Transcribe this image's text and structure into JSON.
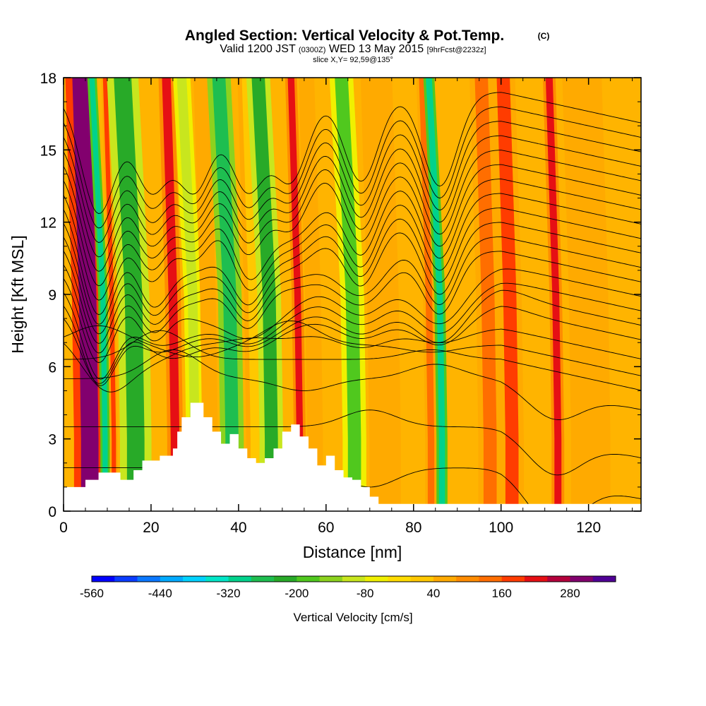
{
  "chart_data": {
    "type": "heatmap",
    "title_main": "Angled Section: Vertical Velocity & Pot.Temp.",
    "title_flag": "(C)",
    "subtitle_a": "Valid 1200 JST",
    "subtitle_b": "(0300Z)",
    "subtitle_c": "WED 13 May 2015",
    "subtitle_d": "[9hrFcst@2232z]",
    "slice_label": "slice X,Y= 92,59@135°",
    "xlabel": "Distance [nm]",
    "ylabel": "Height [Kft MSL]",
    "xlim": [
      0,
      132
    ],
    "ylim": [
      0,
      18
    ],
    "x_ticks": [
      "0",
      "20",
      "40",
      "60",
      "80",
      "100",
      "120"
    ],
    "x_tick_values": [
      0,
      20,
      40,
      60,
      80,
      100,
      120
    ],
    "y_ticks": [
      "0",
      "3",
      "6",
      "9",
      "12",
      "15",
      "18"
    ],
    "y_tick_values": [
      0,
      3,
      6,
      9,
      12,
      15,
      18
    ],
    "colorbar": {
      "label": "Vertical Velocity [cm/s]",
      "tick_labels": [
        "-560",
        "-440",
        "-320",
        "-200",
        "-80",
        "40",
        "160",
        "280"
      ],
      "levels": [
        -560,
        -520,
        -480,
        -440,
        -400,
        -360,
        -320,
        -280,
        -240,
        -200,
        -160,
        -120,
        -80,
        -40,
        0,
        40,
        80,
        120,
        160,
        200,
        240,
        280,
        320
      ],
      "colors": [
        "#0000ff",
        "#0a3cff",
        "#0a78ff",
        "#00aaff",
        "#00d2ff",
        "#00e6c8",
        "#00d28c",
        "#1ebe50",
        "#28aa28",
        "#50c81e",
        "#8cd21e",
        "#c8e61e",
        "#f0f000",
        "#ffdc00",
        "#ffc800",
        "#ffaa00",
        "#ff8c00",
        "#ff6e00",
        "#ff3c00",
        "#e60f14",
        "#b4003c",
        "#82006e",
        "#500096"
      ]
    },
    "vertical_velocity_bands": [
      {
        "x": 5.5,
        "w": 4.0,
        "v": 300
      },
      {
        "x": 9.0,
        "w": 1.2,
        "v": -320
      },
      {
        "x": 11.0,
        "w": 1.0,
        "v": 160
      },
      {
        "x": 16.0,
        "w": 4.0,
        "v": -240
      },
      {
        "x": 25.0,
        "w": 2.0,
        "v": 200
      },
      {
        "x": 29.5,
        "w": 2.2,
        "v": -120
      },
      {
        "x": 33.0,
        "w": 2.0,
        "v": 40
      },
      {
        "x": 38.0,
        "w": 3.0,
        "v": -280
      },
      {
        "x": 43.5,
        "w": 2.5,
        "v": 0
      },
      {
        "x": 47.0,
        "w": 3.0,
        "v": -240
      },
      {
        "x": 53.5,
        "w": 1.5,
        "v": 200
      },
      {
        "x": 57.0,
        "w": 2.0,
        "v": 40
      },
      {
        "x": 66.0,
        "w": 3.0,
        "v": -200
      },
      {
        "x": 73.0,
        "w": 4.0,
        "v": 40
      },
      {
        "x": 83.5,
        "w": 1.5,
        "v": 120
      },
      {
        "x": 86.0,
        "w": 1.4,
        "v": -320
      },
      {
        "x": 97.0,
        "w": 3.0,
        "v": 120
      },
      {
        "x": 102.0,
        "w": 3.0,
        "v": 160
      },
      {
        "x": 112.5,
        "w": 1.6,
        "v": 200
      },
      {
        "x": 120.0,
        "w": 5.0,
        "v": 40
      }
    ],
    "terrain": [
      [
        0,
        1.0
      ],
      [
        4,
        1.0
      ],
      [
        5,
        1.3
      ],
      [
        8,
        1.6
      ],
      [
        12,
        1.6
      ],
      [
        13,
        1.3
      ],
      [
        15,
        1.3
      ],
      [
        16,
        1.7
      ],
      [
        18,
        2.1
      ],
      [
        22,
        2.3
      ],
      [
        25,
        2.6
      ],
      [
        26,
        3.3
      ],
      [
        27,
        3.9
      ],
      [
        29,
        4.5
      ],
      [
        31,
        4.5
      ],
      [
        32,
        3.9
      ],
      [
        34,
        3.3
      ],
      [
        36,
        2.8
      ],
      [
        38,
        3.2
      ],
      [
        40,
        2.6
      ],
      [
        42,
        2.2
      ],
      [
        44,
        2.0
      ],
      [
        46,
        2.2
      ],
      [
        48,
        2.6
      ],
      [
        50,
        3.3
      ],
      [
        52,
        3.6
      ],
      [
        54,
        3.1
      ],
      [
        56,
        2.6
      ],
      [
        58,
        1.9
      ],
      [
        60,
        2.3
      ],
      [
        62,
        1.7
      ],
      [
        64,
        1.4
      ],
      [
        66,
        1.3
      ],
      [
        68,
        1.0
      ],
      [
        70,
        0.6
      ],
      [
        72,
        0.3
      ],
      [
        132,
        0.3
      ]
    ],
    "theta_contours": [
      {
        "h": 1.8,
        "label": "",
        "dip": [
          [
            40,
            0
          ],
          [
            70,
            -0.8
          ],
          [
            112,
            -2.0
          ]
        ]
      },
      {
        "h": 3.5,
        "label": "",
        "dip": [
          [
            40,
            0
          ],
          [
            70,
            0.7
          ],
          [
            112,
            -1.5
          ]
        ]
      },
      {
        "h": 5.5,
        "label": "",
        "dip": [
          [
            25,
            1.2
          ],
          [
            55,
            -0.5
          ],
          [
            85,
            0.6
          ],
          [
            112,
            -1.2
          ]
        ]
      },
      {
        "h": 6.3,
        "label": "",
        "dip": [
          [
            22,
            1.2
          ],
          [
            50,
            0
          ],
          [
            84,
            0.4
          ]
        ]
      },
      {
        "h": 6.9,
        "label": "",
        "dip": [
          [
            8,
            0.8
          ],
          [
            30,
            -0.5
          ],
          [
            52,
            1.0
          ],
          [
            84,
            -0.3
          ]
        ]
      },
      {
        "h": 7.6,
        "label": "",
        "dip": [
          [
            10,
            -2.5
          ],
          [
            22,
            -1.0
          ],
          [
            35,
            -0.5
          ],
          [
            50,
            -0.4
          ],
          [
            68,
            -0.8
          ],
          [
            86,
            -0.6
          ]
        ]
      },
      {
        "h": 8.4,
        "label": "",
        "dip": [
          [
            8,
            -3.0
          ],
          [
            22,
            -1.5
          ],
          [
            30,
            -1.0
          ],
          [
            42,
            -1.5
          ],
          [
            52,
            -0.5
          ],
          [
            68,
            -1.2
          ],
          [
            86,
            -1.5
          ],
          [
            100,
            0.2
          ]
        ]
      },
      {
        "h": 9.0,
        "label": "",
        "dip": [
          [
            8,
            -3.5
          ],
          [
            20,
            -2.0
          ],
          [
            30,
            -1.2
          ],
          [
            42,
            -1.8
          ],
          [
            52,
            -0.8
          ],
          [
            68,
            -1.6
          ],
          [
            86,
            -2.0
          ],
          [
            100,
            0.3
          ]
        ]
      },
      {
        "h": 9.6,
        "label": "",
        "dip": [
          [
            8,
            -3.8
          ],
          [
            20,
            -2.2
          ],
          [
            30,
            -1.5
          ],
          [
            42,
            -2.2
          ],
          [
            52,
            -1.0
          ],
          [
            68,
            -1.8
          ],
          [
            86,
            -2.2
          ]
        ]
      },
      {
        "h": 10.2,
        "label": "",
        "dip": [
          [
            8,
            -4.0
          ],
          [
            20,
            -2.6
          ],
          [
            30,
            -1.8
          ],
          [
            42,
            -2.5
          ],
          [
            52,
            -1.2
          ],
          [
            68,
            -2.0
          ],
          [
            86,
            -2.4
          ]
        ]
      },
      {
        "h": 10.8,
        "label": "",
        "dip": [
          [
            8,
            -4.2
          ],
          [
            20,
            -2.8
          ],
          [
            30,
            -2.0
          ],
          [
            42,
            -2.6
          ],
          [
            52,
            -1.4
          ],
          [
            68,
            -2.2
          ],
          [
            86,
            -2.6
          ]
        ]
      },
      {
        "h": 11.4,
        "label": "",
        "dip": [
          [
            8,
            -4.4
          ],
          [
            20,
            -3.0
          ],
          [
            30,
            -2.2
          ],
          [
            42,
            -2.8
          ],
          [
            52,
            -1.6
          ],
          [
            68,
            -2.4
          ],
          [
            86,
            -2.8
          ]
        ]
      },
      {
        "h": 12.0,
        "label": "",
        "dip": [
          [
            8,
            -4.6
          ],
          [
            20,
            -3.2
          ],
          [
            30,
            -2.3
          ],
          [
            42,
            -3.0
          ],
          [
            52,
            -1.8
          ],
          [
            68,
            -2.6
          ],
          [
            86,
            -3.0
          ]
        ]
      },
      {
        "h": 12.6,
        "label": "",
        "dip": [
          [
            8,
            -4.8
          ],
          [
            20,
            -3.4
          ],
          [
            30,
            -2.5
          ],
          [
            42,
            -3.2
          ],
          [
            52,
            -2.0
          ],
          [
            68,
            -2.8
          ],
          [
            86,
            -3.1
          ]
        ]
      },
      {
        "h": 13.2,
        "label": "",
        "dip": [
          [
            8,
            -5.0
          ],
          [
            20,
            -3.5
          ],
          [
            30,
            -2.6
          ],
          [
            42,
            -3.4
          ],
          [
            52,
            -2.2
          ],
          [
            68,
            -3.0
          ],
          [
            86,
            -3.2
          ]
        ]
      },
      {
        "h": 13.8,
        "label": "",
        "dip": [
          [
            8,
            -5.0
          ],
          [
            20,
            -3.6
          ],
          [
            30,
            -2.8
          ],
          [
            42,
            -3.5
          ],
          [
            52,
            -2.4
          ],
          [
            68,
            -3.1
          ],
          [
            86,
            -3.3
          ]
        ]
      },
      {
        "h": 14.4,
        "label": "",
        "dip": [
          [
            8,
            -5.0
          ],
          [
            20,
            -3.7
          ],
          [
            30,
            -3.0
          ],
          [
            42,
            -3.6
          ],
          [
            52,
            -2.6
          ],
          [
            68,
            -3.2
          ],
          [
            86,
            -3.4
          ]
        ]
      },
      {
        "h": 15.0,
        "label": "",
        "dip": [
          [
            8,
            -5.0
          ],
          [
            20,
            -3.8
          ],
          [
            30,
            -3.2
          ],
          [
            42,
            -3.7
          ],
          [
            52,
            -2.8
          ],
          [
            68,
            -3.3
          ],
          [
            86,
            -3.5
          ]
        ]
      },
      {
        "h": 15.6,
        "label": "",
        "dip": [
          [
            8,
            -5.0
          ],
          [
            20,
            -3.9
          ],
          [
            30,
            -3.4
          ],
          [
            42,
            -3.8
          ],
          [
            52,
            -3.0
          ],
          [
            68,
            -3.4
          ],
          [
            86,
            -3.6
          ]
        ]
      },
      {
        "h": 16.2,
        "label": "",
        "dip": [
          [
            8,
            -5.0
          ],
          [
            20,
            -4.0
          ],
          [
            30,
            -3.6
          ],
          [
            42,
            -3.9
          ],
          [
            52,
            -3.2
          ],
          [
            68,
            -3.5
          ],
          [
            86,
            -3.7
          ]
        ]
      },
      {
        "h": 16.8,
        "label": "",
        "dip": [
          [
            8,
            -5.0
          ],
          [
            20,
            -4.0
          ],
          [
            30,
            -3.8
          ],
          [
            42,
            -4.0
          ],
          [
            52,
            -3.4
          ],
          [
            68,
            -3.6
          ],
          [
            86,
            -3.8
          ]
        ]
      },
      {
        "h": 17.4,
        "label": "",
        "dip": [
          [
            8,
            -5.0
          ],
          [
            20,
            -4.0
          ],
          [
            30,
            -4.0
          ],
          [
            42,
            -4.0
          ],
          [
            52,
            -3.6
          ],
          [
            68,
            -3.7
          ],
          [
            86,
            -3.9
          ]
        ]
      }
    ]
  }
}
